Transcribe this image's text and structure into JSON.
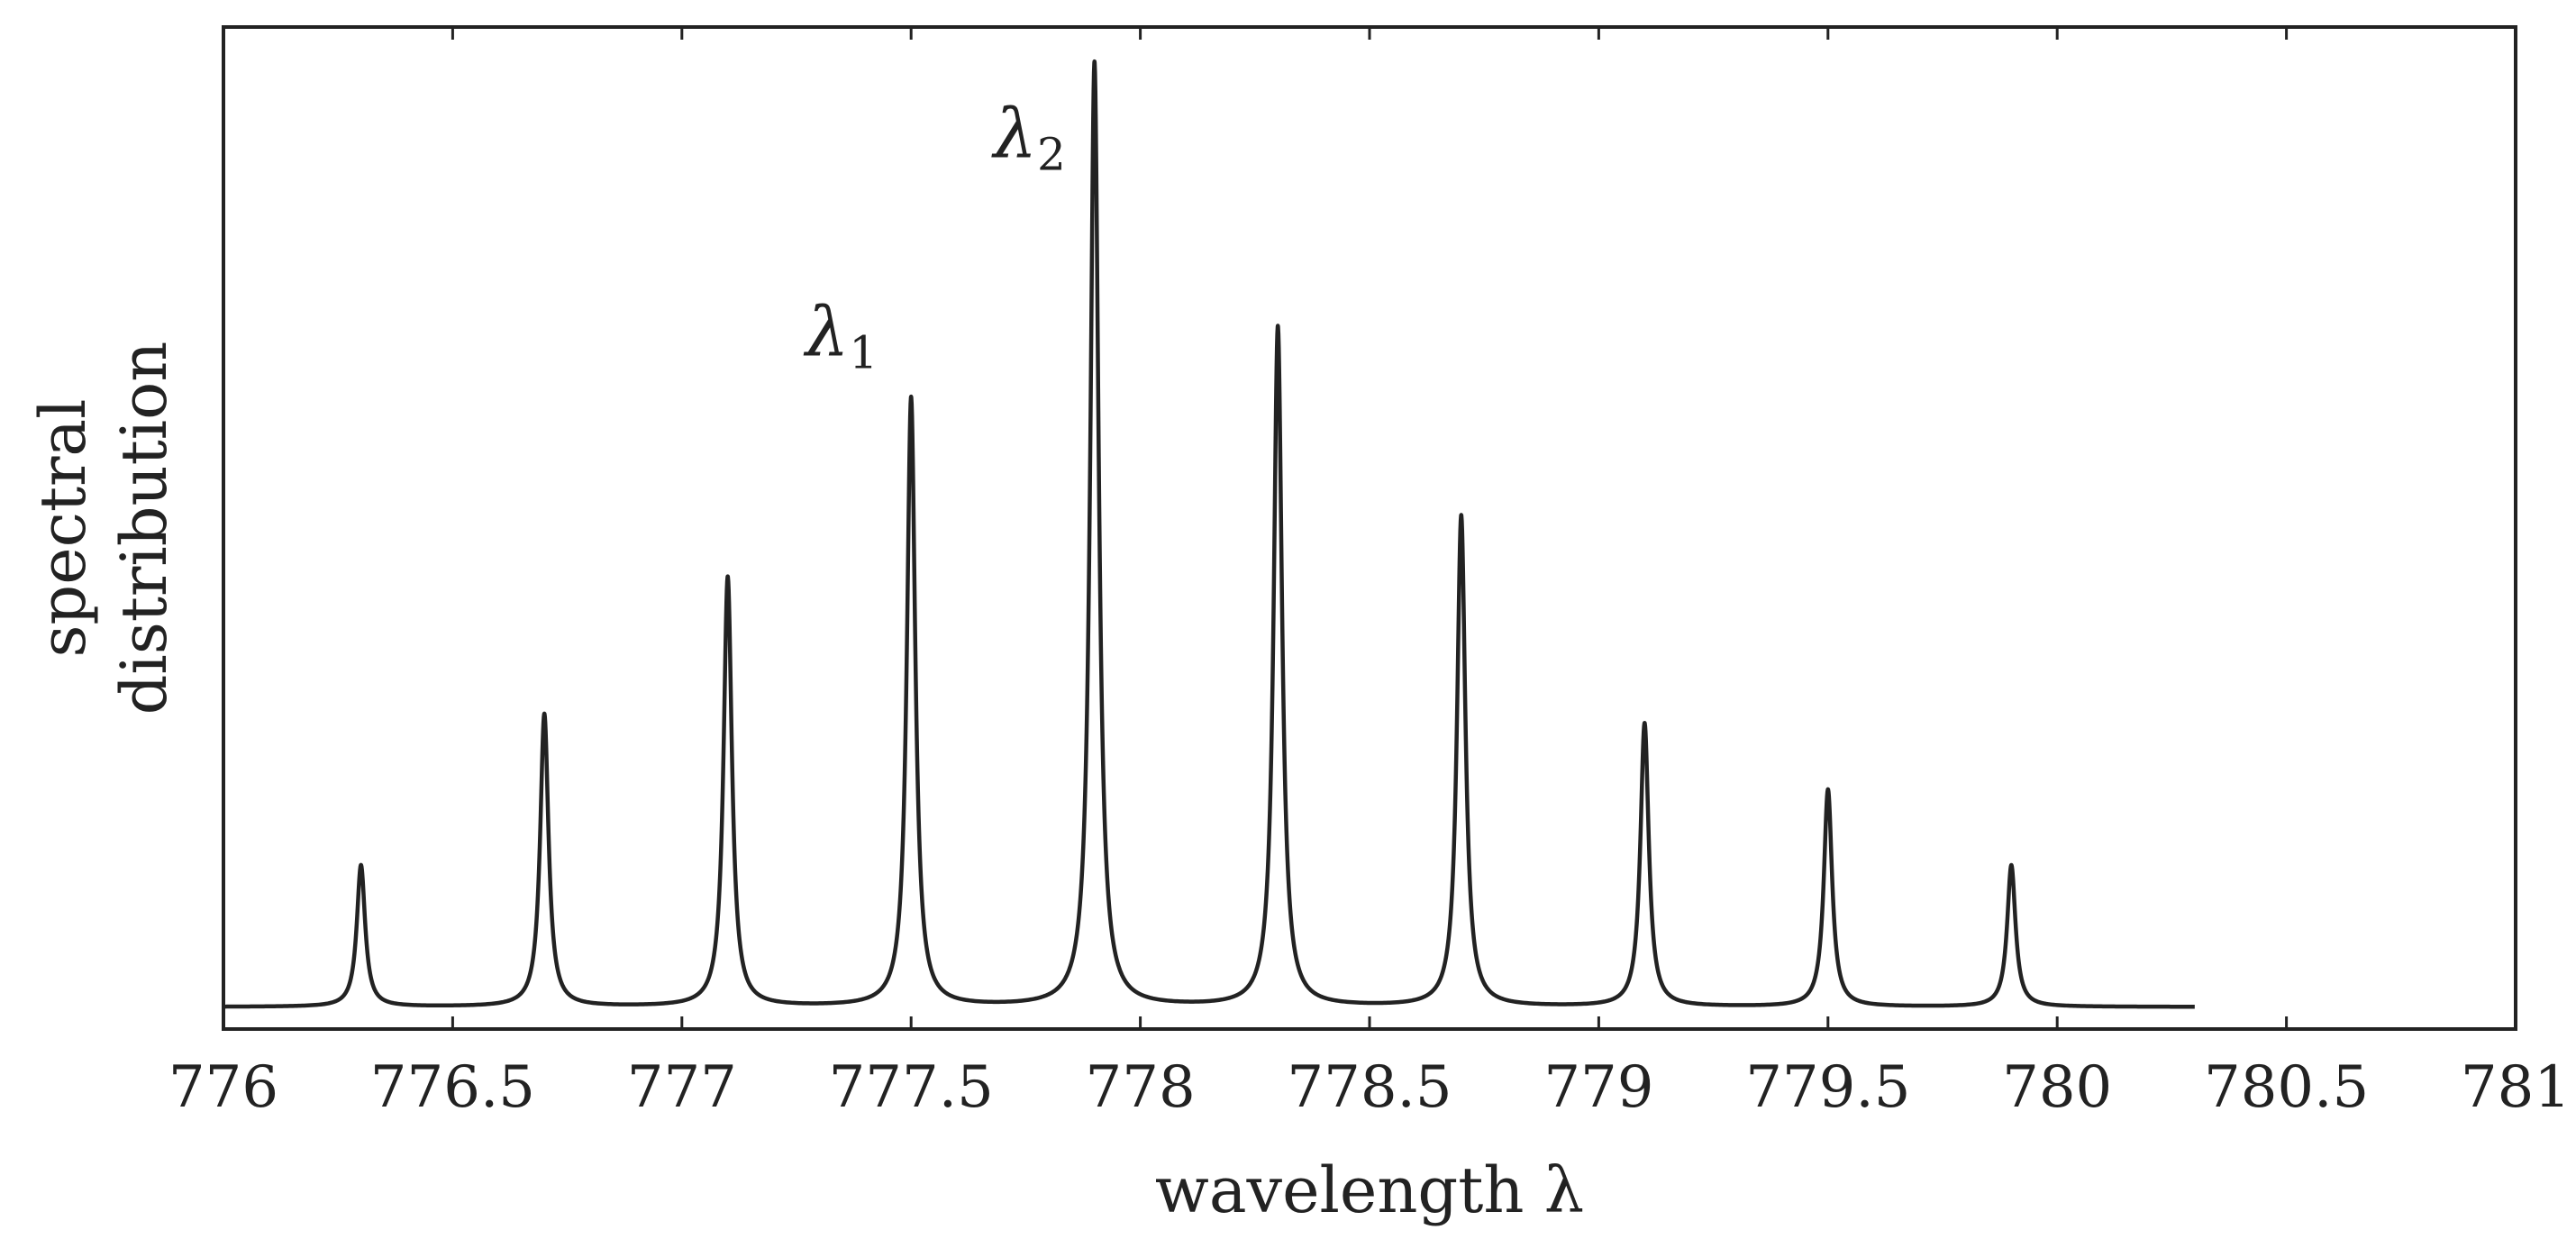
{
  "chart_data": {
    "type": "line",
    "title": "",
    "xlabel": "wavelength λ",
    "ylabel_lines": [
      "spectral",
      "distribution"
    ],
    "xlim": [
      776,
      781
    ],
    "ylim": [
      0,
      1.05
    ],
    "x_ticks": [
      776,
      776.5,
      777,
      777.5,
      778,
      778.5,
      779,
      779.5,
      780,
      780.5,
      781
    ],
    "x_tick_labels": [
      "776",
      "776.5",
      "777",
      "777.5",
      "778",
      "778.5",
      "779",
      "779.5",
      "780",
      "780.5",
      "781"
    ],
    "grid": false,
    "curve_range": [
      776,
      780.3
    ],
    "baseline": 0.01,
    "series": [
      {
        "name": "spectral distribution",
        "color": "#222222",
        "peaks": [
          {
            "x": 776.3,
            "y": 0.15
          },
          {
            "x": 776.7,
            "y": 0.31
          },
          {
            "x": 777.1,
            "y": 0.455
          },
          {
            "x": 777.5,
            "y": 0.645
          },
          {
            "x": 777.9,
            "y": 1.0
          },
          {
            "x": 778.3,
            "y": 0.72
          },
          {
            "x": 778.7,
            "y": 0.52
          },
          {
            "x": 779.1,
            "y": 0.3
          },
          {
            "x": 779.5,
            "y": 0.23
          },
          {
            "x": 779.9,
            "y": 0.15
          }
        ]
      }
    ],
    "annotations": [
      {
        "symbol": "λ",
        "sub": "1",
        "x": 777.27,
        "y": 0.7
      },
      {
        "symbol": "λ",
        "sub": "2",
        "x": 777.68,
        "y": 0.91
      }
    ]
  }
}
